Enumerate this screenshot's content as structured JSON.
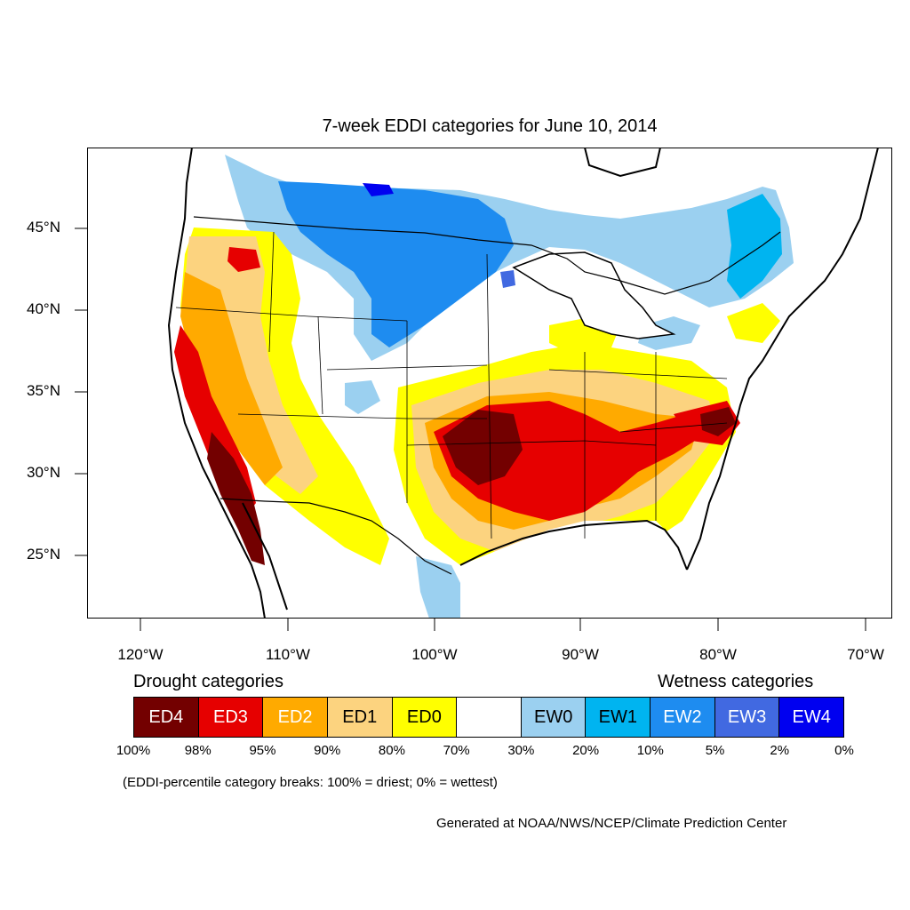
{
  "title": "7-week EDDI categories for June 10, 2014",
  "axes": {
    "lat_labels": [
      "45°N",
      "40°N",
      "35°N",
      "30°N",
      "25°N"
    ],
    "lon_labels": [
      "120°W",
      "110°W",
      "100°W",
      "90°W",
      "80°W",
      "70°W"
    ]
  },
  "legend": {
    "drought_heading": "Drought categories",
    "wetness_heading": "Wetness categories",
    "categories": [
      {
        "label": "ED4",
        "color": "#730000",
        "text_color": "#ffffff"
      },
      {
        "label": "ED3",
        "color": "#e60000",
        "text_color": "#ffffff"
      },
      {
        "label": "ED2",
        "color": "#ffaa00",
        "text_color": "#ffffff"
      },
      {
        "label": "ED1",
        "color": "#fcd37f",
        "text_color": "#000000"
      },
      {
        "label": "ED0",
        "color": "#ffff00",
        "text_color": "#000000"
      },
      {
        "label": "",
        "color": "#ffffff",
        "text_color": "#000000"
      },
      {
        "label": "EW0",
        "color": "#9bd0f0",
        "text_color": "#000000"
      },
      {
        "label": "EW1",
        "color": "#00b4f0",
        "text_color": "#000000"
      },
      {
        "label": "EW2",
        "color": "#1e8cf0",
        "text_color": "#ffffff"
      },
      {
        "label": "EW3",
        "color": "#4169e1",
        "text_color": "#ffffff"
      },
      {
        "label": "EW4",
        "color": "#0000f0",
        "text_color": "#ffffff"
      }
    ],
    "breaks": [
      "100%",
      "98%",
      "95%",
      "90%",
      "80%",
      "70%",
      "30%",
      "20%",
      "10%",
      "5%",
      "2%",
      "0%"
    ]
  },
  "note": "(EDDI-percentile category breaks: 100% = driest; 0% = wettest)",
  "credit": "Generated at NOAA/NWS/NCEP/Climate Prediction Center"
}
